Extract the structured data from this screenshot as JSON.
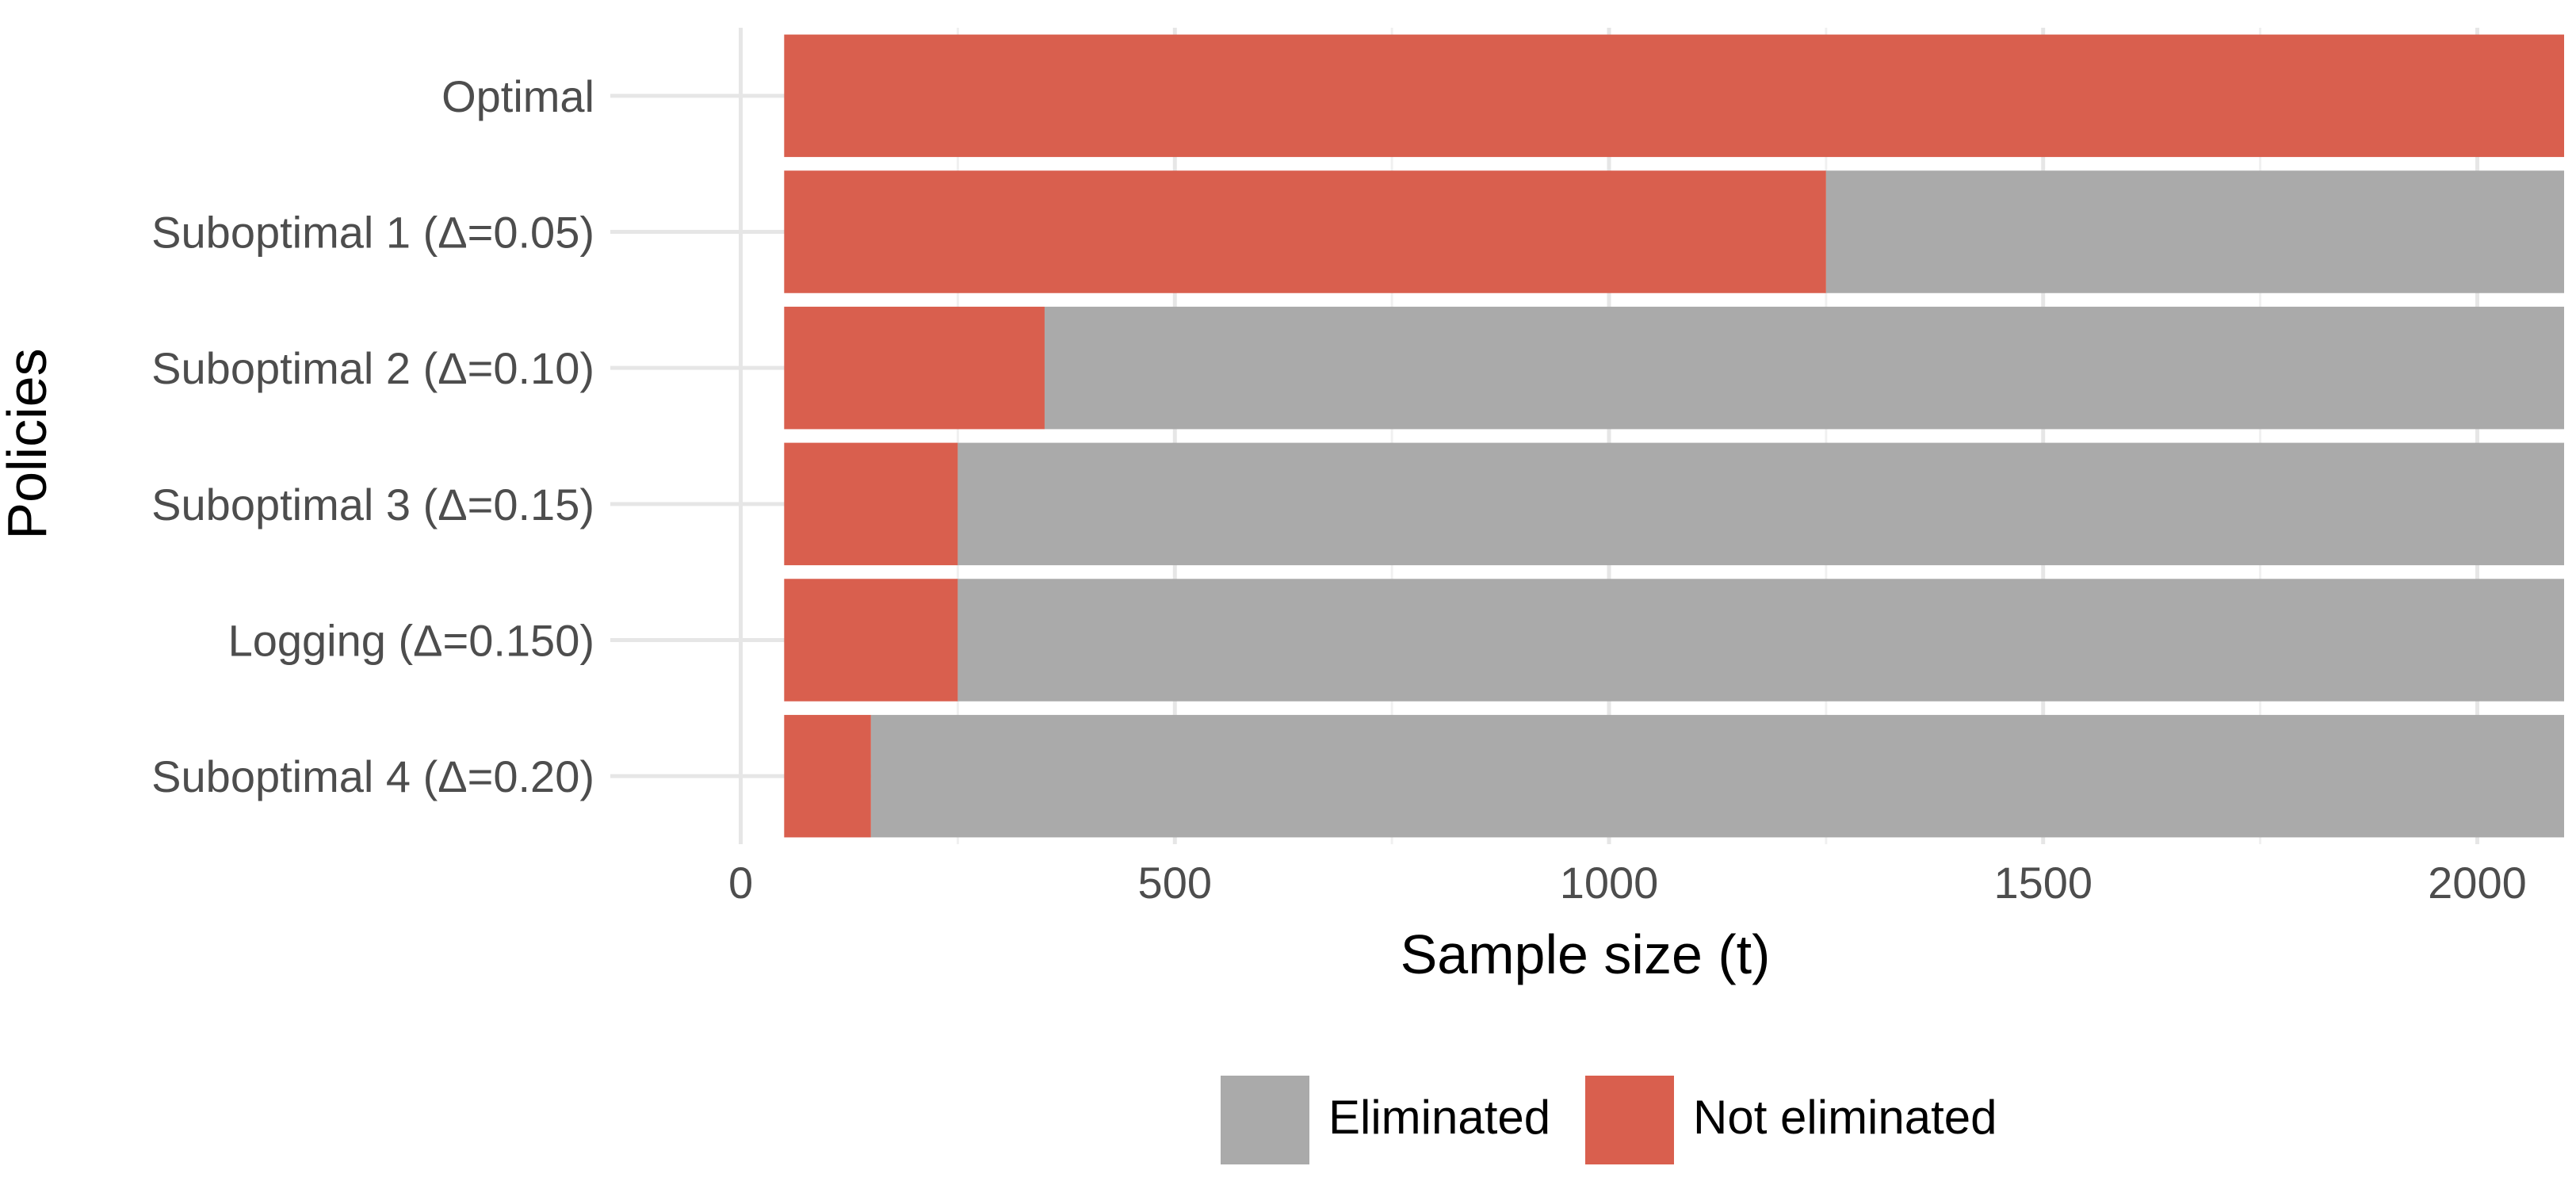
{
  "chart_data": {
    "type": "bar",
    "orientation": "horizontal",
    "stacked": true,
    "xlabel": "Sample size (t)",
    "ylabel": "Policies",
    "xlim": [
      -100,
      2100
    ],
    "x_ticks": [
      0,
      500,
      1000,
      1500,
      2000
    ],
    "x_tick_labels": [
      "0",
      "500",
      "1000",
      "1500",
      "2000"
    ],
    "grid": true,
    "legend_position": "bottom",
    "categories": [
      "Optimal",
      "Suboptimal 1 (Δ=0.05)",
      "Suboptimal 2 (Δ=0.10)",
      "Suboptimal 3 (Δ=0.15)",
      "Logging (Δ=0.150)",
      "Suboptimal 4 (Δ=0.20)"
    ],
    "bar_start": 50,
    "series": [
      {
        "name": "Not eliminated",
        "color": "#d95f4e",
        "intervals": [
          [
            50,
            2100
          ],
          [
            50,
            1250
          ],
          [
            50,
            350
          ],
          [
            50,
            250
          ],
          [
            50,
            250
          ],
          [
            50,
            150
          ]
        ]
      },
      {
        "name": "Eliminated",
        "color": "#aaaaaa",
        "intervals": [
          null,
          [
            1250,
            2100
          ],
          [
            350,
            2100
          ],
          [
            250,
            2100
          ],
          [
            250,
            2100
          ],
          [
            150,
            2100
          ]
        ]
      }
    ],
    "legend": [
      {
        "label": "Eliminated",
        "color": "#aaaaaa"
      },
      {
        "label": "Not eliminated",
        "color": "#d95f4e"
      }
    ]
  }
}
